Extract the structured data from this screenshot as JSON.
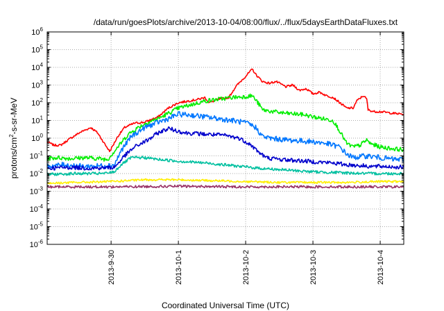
{
  "chart_data": {
    "type": "line",
    "title": "/data/run/goesPlots/archive/2013-10-04/08:00/flux/../flux/5daysEarthDataFluxes.txt",
    "xlabel": "Coordinated Universal Time (UTC)",
    "ylabel_parts": [
      "protons/cm",
      "2",
      "-s-sr-MeV"
    ],
    "y_scale": "log",
    "ylim_exp": [
      -6,
      6
    ],
    "y_ticks": [
      {
        "base": "10",
        "exp": "6"
      },
      {
        "base": "10",
        "exp": "5"
      },
      {
        "base": "10",
        "exp": "4"
      },
      {
        "base": "10",
        "exp": "3"
      },
      {
        "base": "10",
        "exp": "2"
      },
      {
        "base": "10",
        "exp": "1"
      },
      {
        "base": "10",
        "exp": "0"
      },
      {
        "base": "10",
        "exp": "-1"
      },
      {
        "base": "10",
        "exp": "-2"
      },
      {
        "base": "10",
        "exp": "-3"
      },
      {
        "base": "10",
        "exp": "-4"
      },
      {
        "base": "10",
        "exp": "-5"
      },
      {
        "base": "10",
        "exp": "-6"
      }
    ],
    "x_range_days": [
      -0.95,
      4.35
    ],
    "x_ticks": [
      {
        "label": "2013-9-30",
        "day": 0
      },
      {
        "label": "2013-10-1",
        "day": 1
      },
      {
        "label": "2013-10-2",
        "day": 2
      },
      {
        "label": "2013-10-3",
        "day": 3
      },
      {
        "label": "2013-10-4",
        "day": 4
      }
    ],
    "grid": true,
    "series": [
      {
        "color": "#ff0000",
        "noise": 0.06,
        "points": [
          [
            -0.95,
            -0.2
          ],
          [
            -0.85,
            -0.4
          ],
          [
            -0.75,
            -0.4
          ],
          [
            -0.6,
            0
          ],
          [
            -0.45,
            0.35
          ],
          [
            -0.3,
            0.6
          ],
          [
            -0.2,
            0.3
          ],
          [
            -0.1,
            -0.3
          ],
          [
            -0.02,
            -0.75
          ],
          [
            0.1,
            0.1
          ],
          [
            0.2,
            0.6
          ],
          [
            0.35,
            0.85
          ],
          [
            0.5,
            0.9
          ],
          [
            0.7,
            1.2
          ],
          [
            0.85,
            1.7
          ],
          [
            1.0,
            2.0
          ],
          [
            1.15,
            2.1
          ],
          [
            1.3,
            2.2
          ],
          [
            1.4,
            2.3
          ],
          [
            1.45,
            2.0
          ],
          [
            1.6,
            2.2
          ],
          [
            1.75,
            2.3
          ],
          [
            1.85,
            2.9
          ],
          [
            1.9,
            3.1
          ],
          [
            2.0,
            3.5
          ],
          [
            2.1,
            3.9
          ],
          [
            2.15,
            3.6
          ],
          [
            2.25,
            3.2
          ],
          [
            2.35,
            3.1
          ],
          [
            2.45,
            3.2
          ],
          [
            2.6,
            2.9
          ],
          [
            2.7,
            3.0
          ],
          [
            2.8,
            2.7
          ],
          [
            2.9,
            2.8
          ],
          [
            3.0,
            2.5
          ],
          [
            3.1,
            2.6
          ],
          [
            3.2,
            2.4
          ],
          [
            3.3,
            2.3
          ],
          [
            3.4,
            2.0
          ],
          [
            3.5,
            1.7
          ],
          [
            3.6,
            1.7
          ],
          [
            3.65,
            2.1
          ],
          [
            3.75,
            2.4
          ],
          [
            3.8,
            2.2
          ],
          [
            3.82,
            1.6
          ],
          [
            3.9,
            1.5
          ],
          [
            4.0,
            1.5
          ],
          [
            4.1,
            1.45
          ],
          [
            4.2,
            1.4
          ],
          [
            4.35,
            1.35
          ]
        ]
      },
      {
        "color": "#00ee00",
        "noise": 0.12,
        "points": [
          [
            -0.95,
            -1.15
          ],
          [
            -0.8,
            -1.1
          ],
          [
            -0.6,
            -1.15
          ],
          [
            -0.4,
            -1.1
          ],
          [
            -0.2,
            -1.15
          ],
          [
            -0.05,
            -1.2
          ],
          [
            0.1,
            -0.5
          ],
          [
            0.25,
            0.2
          ],
          [
            0.4,
            0.6
          ],
          [
            0.55,
            0.9
          ],
          [
            0.7,
            1.1
          ],
          [
            0.85,
            1.4
          ],
          [
            1.0,
            1.7
          ],
          [
            1.2,
            1.9
          ],
          [
            1.4,
            2.1
          ],
          [
            1.6,
            2.2
          ],
          [
            1.8,
            2.3
          ],
          [
            2.0,
            2.35
          ],
          [
            2.1,
            2.4
          ],
          [
            2.2,
            1.9
          ],
          [
            2.25,
            1.6
          ],
          [
            2.4,
            1.5
          ],
          [
            2.6,
            1.4
          ],
          [
            2.8,
            1.35
          ],
          [
            2.9,
            1.3
          ],
          [
            3.0,
            1.2
          ],
          [
            3.15,
            1.1
          ],
          [
            3.3,
            1.0
          ],
          [
            3.4,
            0.4
          ],
          [
            3.5,
            -0.3
          ],
          [
            3.6,
            -0.5
          ],
          [
            3.7,
            -0.4
          ],
          [
            3.8,
            -0.1
          ],
          [
            3.85,
            -0.3
          ],
          [
            4.0,
            -0.5
          ],
          [
            4.2,
            -0.6
          ],
          [
            4.35,
            -0.65
          ]
        ]
      },
      {
        "color": "#0077ff",
        "noise": 0.15,
        "points": [
          [
            -0.95,
            -1.6
          ],
          [
            -0.7,
            -1.5
          ],
          [
            -0.4,
            -1.6
          ],
          [
            -0.1,
            -1.55
          ],
          [
            0.05,
            -1.5
          ],
          [
            0.15,
            -0.7
          ],
          [
            0.3,
            0.1
          ],
          [
            0.5,
            0.6
          ],
          [
            0.7,
            0.9
          ],
          [
            0.85,
            1.1
          ],
          [
            1.0,
            1.35
          ],
          [
            1.2,
            1.3
          ],
          [
            1.4,
            1.2
          ],
          [
            1.6,
            1.1
          ],
          [
            1.8,
            1.0
          ],
          [
            1.95,
            0.9
          ],
          [
            2.05,
            0.8
          ],
          [
            2.15,
            0.6
          ],
          [
            2.25,
            0.1
          ],
          [
            2.35,
            0.0
          ],
          [
            2.6,
            -0.1
          ],
          [
            2.8,
            -0.15
          ],
          [
            3.0,
            -0.2
          ],
          [
            3.2,
            -0.3
          ],
          [
            3.4,
            -0.5
          ],
          [
            3.5,
            -0.9
          ],
          [
            3.6,
            -1.1
          ],
          [
            3.8,
            -1.0
          ],
          [
            4.0,
            -1.1
          ],
          [
            4.2,
            -1.2
          ],
          [
            4.35,
            -1.2
          ]
        ]
      },
      {
        "color": "#0000cc",
        "noise": 0.12,
        "points": [
          [
            -0.95,
            -1.7
          ],
          [
            -0.6,
            -1.65
          ],
          [
            -0.3,
            -1.7
          ],
          [
            0.05,
            -1.65
          ],
          [
            0.2,
            -1.0
          ],
          [
            0.35,
            -0.5
          ],
          [
            0.55,
            -0.1
          ],
          [
            0.7,
            0.3
          ],
          [
            0.85,
            0.55
          ],
          [
            0.95,
            0.45
          ],
          [
            1.1,
            0.3
          ],
          [
            1.3,
            0.25
          ],
          [
            1.5,
            0.2
          ],
          [
            1.7,
            0.15
          ],
          [
            1.9,
            0.0
          ],
          [
            2.05,
            -0.3
          ],
          [
            2.2,
            -0.8
          ],
          [
            2.3,
            -1.1
          ],
          [
            2.5,
            -1.2
          ],
          [
            2.7,
            -1.25
          ],
          [
            2.9,
            -1.3
          ],
          [
            3.1,
            -1.35
          ],
          [
            3.3,
            -1.4
          ],
          [
            3.5,
            -1.5
          ],
          [
            3.7,
            -1.55
          ],
          [
            3.9,
            -1.6
          ],
          [
            4.1,
            -1.6
          ],
          [
            4.35,
            -1.65
          ]
        ]
      },
      {
        "color": "#00c0a0",
        "noise": 0.08,
        "points": [
          [
            -0.95,
            -2.05
          ],
          [
            -0.5,
            -2.0
          ],
          [
            -0.1,
            -2.0
          ],
          [
            0.05,
            -1.9
          ],
          [
            0.15,
            -1.5
          ],
          [
            0.3,
            -1.1
          ],
          [
            0.5,
            -1.1
          ],
          [
            0.7,
            -1.2
          ],
          [
            1.0,
            -1.3
          ],
          [
            1.4,
            -1.4
          ],
          [
            1.8,
            -1.55
          ],
          [
            2.2,
            -1.7
          ],
          [
            2.6,
            -1.8
          ],
          [
            3.0,
            -1.9
          ],
          [
            3.4,
            -1.95
          ],
          [
            3.8,
            -2.0
          ],
          [
            4.35,
            -2.0
          ]
        ]
      },
      {
        "color": "#ffee00",
        "noise": 0.06,
        "points": [
          [
            -0.95,
            -2.55
          ],
          [
            -0.5,
            -2.5
          ],
          [
            0.0,
            -2.45
          ],
          [
            0.5,
            -2.35
          ],
          [
            1.0,
            -2.35
          ],
          [
            1.5,
            -2.4
          ],
          [
            2.0,
            -2.45
          ],
          [
            2.5,
            -2.5
          ],
          [
            3.0,
            -2.5
          ],
          [
            3.5,
            -2.5
          ],
          [
            4.0,
            -2.45
          ],
          [
            4.35,
            -2.45
          ]
        ]
      },
      {
        "color": "#993366",
        "noise": 0.07,
        "points": [
          [
            -0.95,
            -2.75
          ],
          [
            0.0,
            -2.75
          ],
          [
            1.0,
            -2.72
          ],
          [
            2.0,
            -2.75
          ],
          [
            3.0,
            -2.75
          ],
          [
            4.35,
            -2.75
          ]
        ]
      }
    ]
  }
}
